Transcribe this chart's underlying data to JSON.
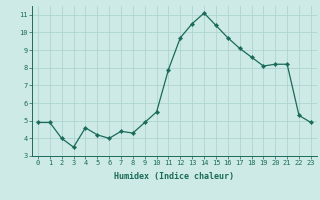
{
  "x": [
    0,
    1,
    2,
    3,
    4,
    5,
    6,
    7,
    8,
    9,
    10,
    11,
    12,
    13,
    14,
    15,
    16,
    17,
    18,
    19,
    20,
    21,
    22,
    23
  ],
  "y": [
    4.9,
    4.9,
    4.0,
    3.5,
    4.6,
    4.2,
    4.0,
    4.4,
    4.3,
    4.9,
    5.5,
    7.9,
    9.7,
    10.5,
    11.1,
    10.4,
    9.7,
    9.1,
    8.6,
    8.1,
    8.2,
    8.2,
    5.3,
    4.9
  ],
  "line_color": "#1a6b5a",
  "marker": "D",
  "marker_size": 2.2,
  "bg_color": "#ceeae6",
  "grid_color": "#aed4cf",
  "xlabel": "Humidex (Indice chaleur)",
  "ylim": [
    3,
    11.5
  ],
  "xlim": [
    -0.5,
    23.5
  ],
  "yticks": [
    3,
    4,
    5,
    6,
    7,
    8,
    9,
    10,
    11
  ],
  "xticks": [
    0,
    1,
    2,
    3,
    4,
    5,
    6,
    7,
    8,
    9,
    10,
    11,
    12,
    13,
    14,
    15,
    16,
    17,
    18,
    19,
    20,
    21,
    22,
    23
  ],
  "tick_fontsize": 5.0,
  "xlabel_fontsize": 6.0,
  "linewidth": 0.9
}
